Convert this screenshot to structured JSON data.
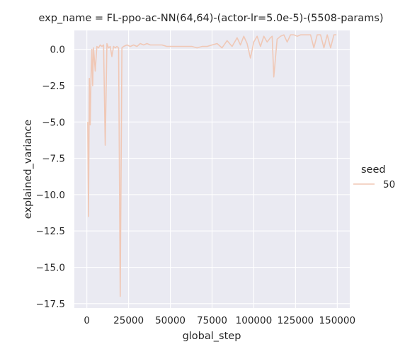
{
  "chart_data": {
    "type": "line",
    "title": "exp_name = FL-ppo-ac-NN(64,64)-(actor-lr=5.0e-5)-(5508-params)",
    "xlabel": "global_step",
    "ylabel": "explained_variance",
    "xlim": [
      -7500,
      157500
    ],
    "ylim": [
      -17.8,
      1.3
    ],
    "xticks": [
      0,
      25000,
      50000,
      75000,
      100000,
      125000,
      150000
    ],
    "xtick_labels": [
      "0",
      "25000",
      "50000",
      "75000",
      "100000",
      "125000",
      "150000"
    ],
    "yticks": [
      0.0,
      -2.5,
      -5.0,
      -7.5,
      -10.0,
      -12.5,
      -15.0,
      -17.5
    ],
    "ytick_labels": [
      "0.0",
      "−2.5",
      "−5.0",
      "−7.5",
      "−10.0",
      "−12.5",
      "−15.0",
      "−17.5"
    ],
    "grid": true,
    "legend": {
      "title": "seed",
      "placement": "right"
    },
    "colors": {
      "background": "#eaeaf2",
      "grid": "#ffffff",
      "series": "#f0c8b6"
    },
    "series": [
      {
        "name": "50",
        "x": [
          500,
          1000,
          1500,
          2000,
          2500,
          3000,
          3500,
          4000,
          5000,
          6000,
          7000,
          8000,
          9000,
          10000,
          11000,
          12000,
          13000,
          14000,
          15000,
          16000,
          17000,
          18000,
          19000,
          20000,
          21000,
          22000,
          24000,
          26000,
          28000,
          30000,
          32000,
          34000,
          36000,
          38000,
          40000,
          42000,
          45000,
          48000,
          51000,
          54000,
          57000,
          60000,
          63000,
          66000,
          69000,
          72000,
          75000,
          78000,
          81000,
          84000,
          87000,
          90000,
          92000,
          94000,
          96000,
          98000,
          100000,
          102000,
          104000,
          106000,
          108000,
          110000,
          111000,
          112000,
          114000,
          116000,
          118000,
          120000,
          122000,
          124000,
          126000,
          128000,
          130000,
          132000,
          134000,
          136000,
          138000,
          140000,
          142000,
          144000,
          146000,
          148000,
          149500
        ],
        "values": [
          -5.0,
          -11.5,
          -2.0,
          -5.2,
          -1.8,
          0.0,
          -2.5,
          0.1,
          -1.5,
          0.2,
          0.1,
          0.3,
          0.2,
          0.3,
          -6.6,
          0.4,
          0.1,
          0.2,
          -0.5,
          0.2,
          0.1,
          0.2,
          0.1,
          -17.0,
          0.1,
          0.2,
          0.3,
          0.2,
          0.3,
          0.2,
          0.4,
          0.3,
          0.4,
          0.3,
          0.3,
          0.3,
          0.3,
          0.2,
          0.2,
          0.2,
          0.2,
          0.2,
          0.2,
          0.1,
          0.2,
          0.2,
          0.3,
          0.4,
          0.1,
          0.6,
          0.2,
          0.8,
          0.3,
          0.9,
          0.4,
          -0.6,
          0.5,
          0.9,
          0.2,
          0.9,
          0.5,
          0.8,
          0.9,
          -1.9,
          0.7,
          0.9,
          1.0,
          0.5,
          1.0,
          1.0,
          0.9,
          1.0,
          1.0,
          1.0,
          1.0,
          0.1,
          1.0,
          1.0,
          0.1,
          1.0,
          0.1,
          1.0,
          1.0
        ]
      }
    ]
  }
}
